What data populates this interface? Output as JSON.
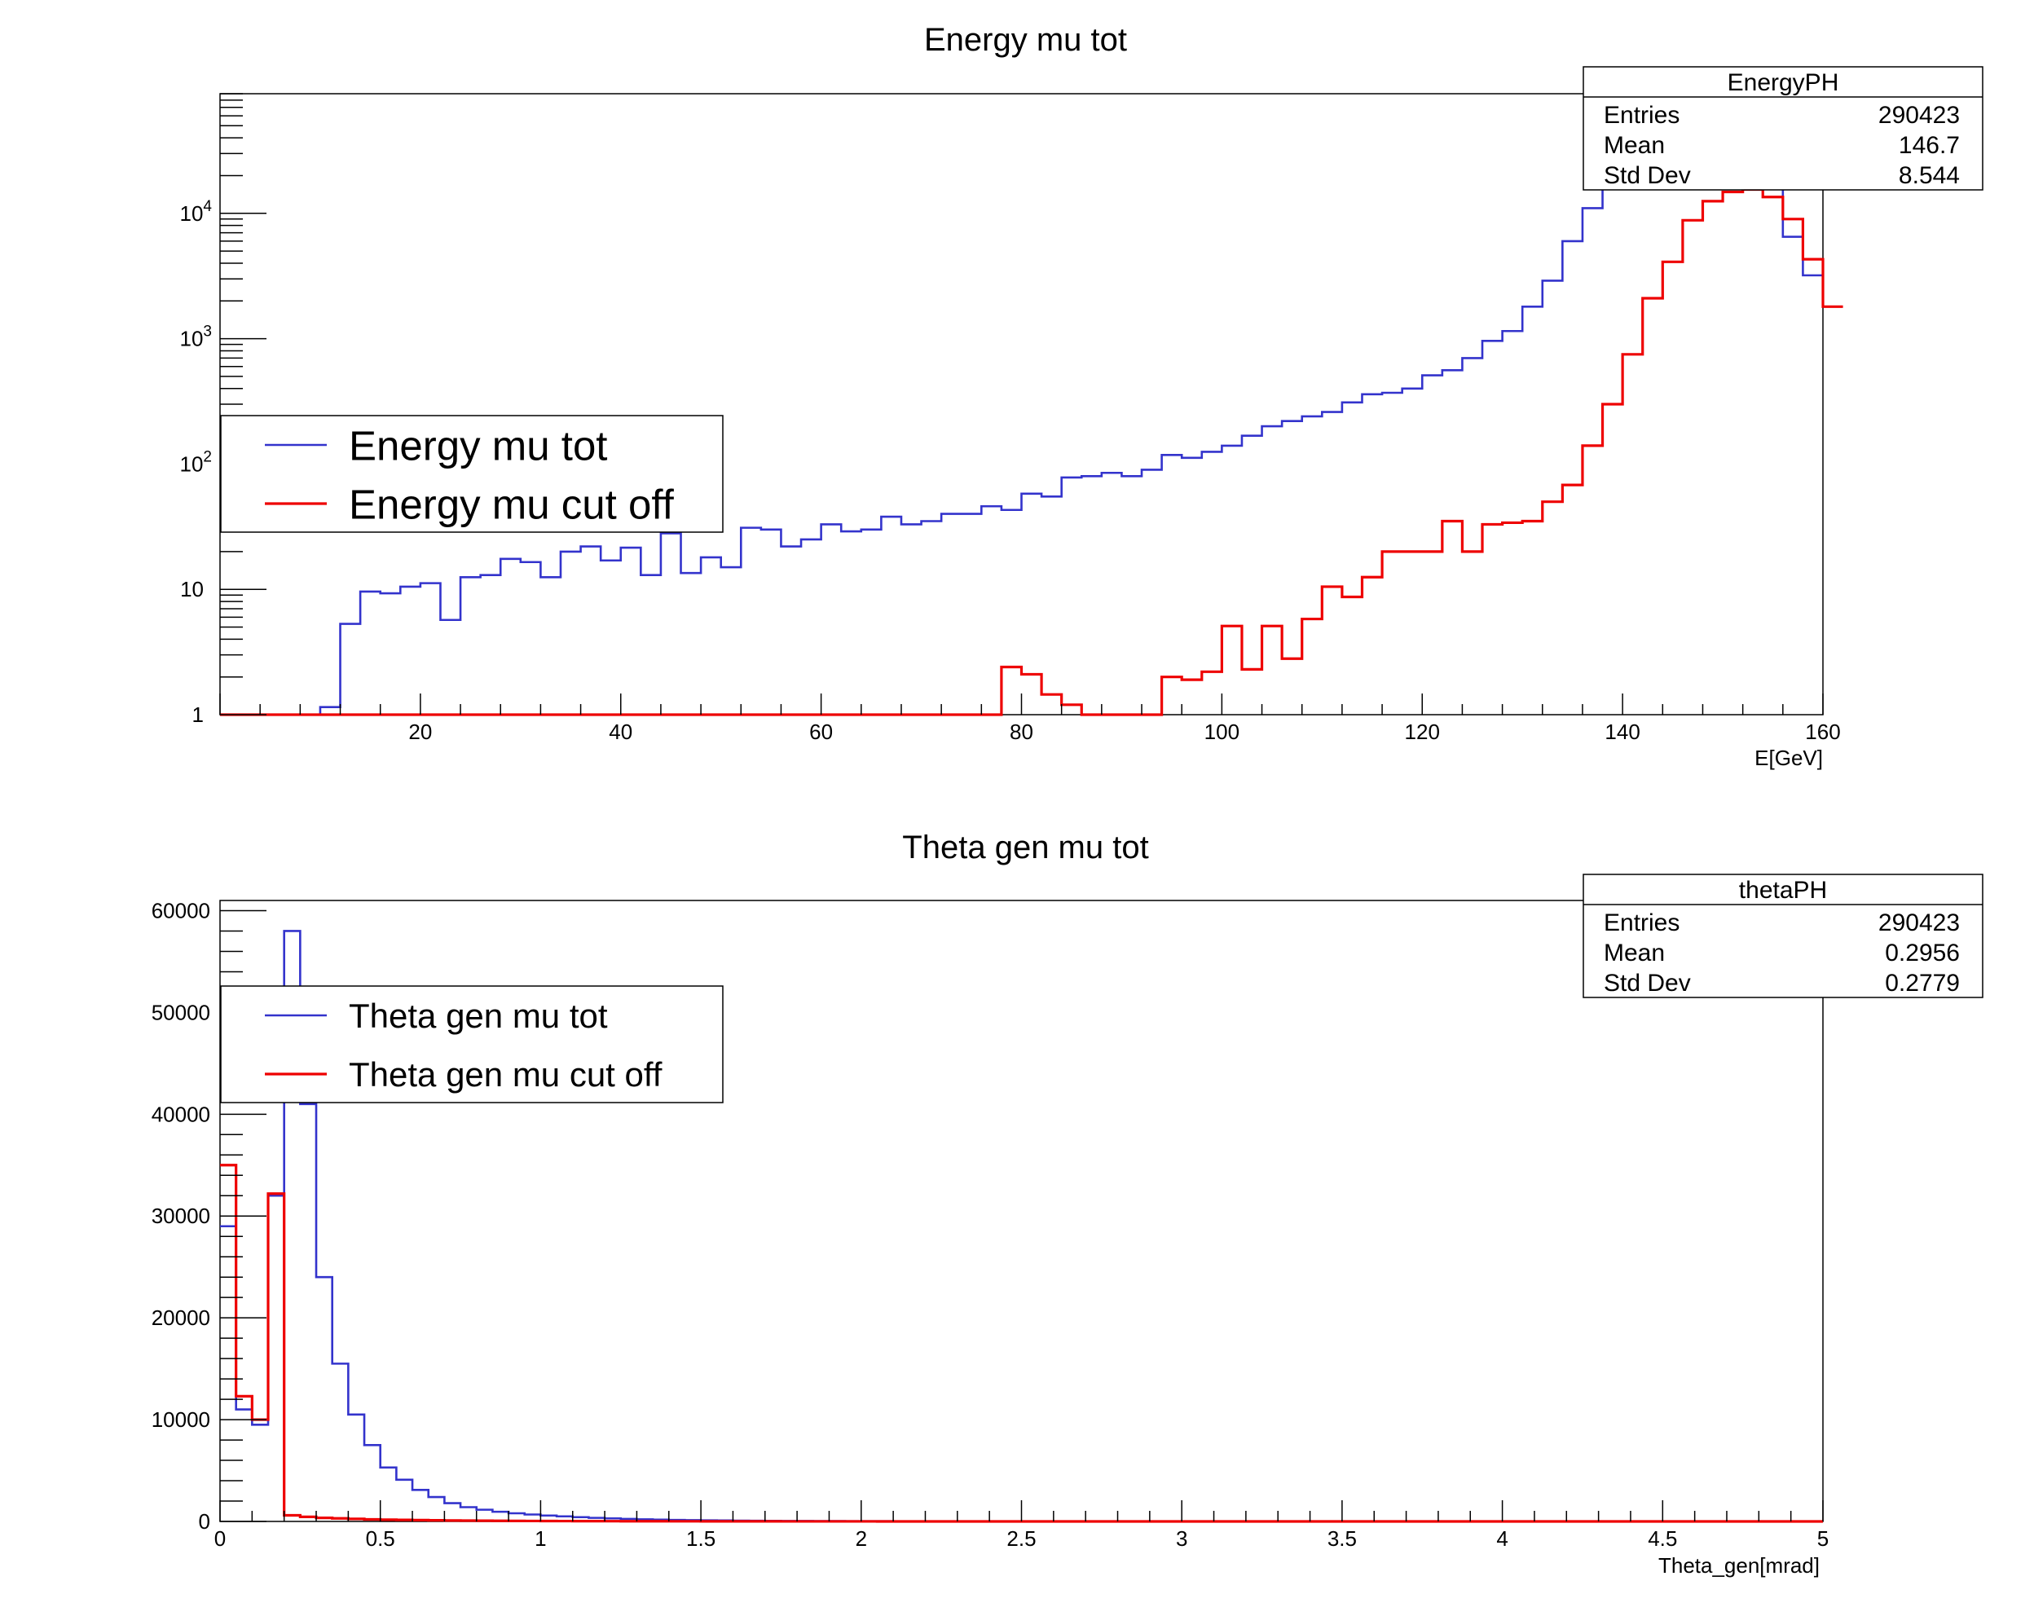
{
  "colors": {
    "blue": "#3333cc",
    "red": "#ee0000",
    "frame": "#000000",
    "background": "#ffffff"
  },
  "chart_data": [
    {
      "type": "histogram",
      "title": "Energy mu tot",
      "xlabel": "E[GeV]",
      "ylabel": "",
      "xlim": [
        0,
        160
      ],
      "ylim": [
        1,
        90000
      ],
      "log_y": true,
      "grid": false,
      "x_ticks": [
        "20",
        "40",
        "60",
        "80",
        "100",
        "120",
        "140",
        "160"
      ],
      "y_ticks": [
        {
          "value": 1,
          "base": "1",
          "exp": ""
        },
        {
          "value": 10,
          "base": "10",
          "exp": ""
        },
        {
          "value": 100,
          "base": "10",
          "exp": "2"
        },
        {
          "value": 1000,
          "base": "10",
          "exp": "3"
        },
        {
          "value": 10000,
          "base": "10",
          "exp": "4"
        }
      ],
      "bin_width": 2,
      "stats": {
        "name": "EnergyPH",
        "rows": [
          {
            "label": "Entries",
            "value": "290423"
          },
          {
            "label": "Mean",
            "value": "146.7"
          },
          {
            "label": "Std Dev",
            "value": "8.544"
          }
        ]
      },
      "legend": {
        "position": "left-middle",
        "entries": [
          {
            "label": "Energy mu tot",
            "color": "#3333cc"
          },
          {
            "label": "Energy mu cut off",
            "color": "#ee0000"
          }
        ]
      },
      "series": [
        {
          "name": "Energy mu tot",
          "color": "#3333cc",
          "values": [
            1,
            1,
            1,
            1,
            1,
            1.15,
            5.3,
            9.6,
            9.3,
            10.5,
            11.2,
            5.7,
            12.5,
            13,
            17.5,
            16.5,
            12.5,
            20,
            22,
            17,
            21.5,
            13,
            28,
            13.5,
            18,
            15,
            31,
            30,
            22,
            25,
            33,
            29,
            30,
            38,
            33,
            35,
            40,
            40,
            46,
            43,
            58,
            55,
            78,
            80,
            85,
            80,
            90,
            118,
            112,
            125,
            140,
            168,
            200,
            220,
            240,
            260,
            310,
            360,
            370,
            400,
            510,
            560,
            700,
            960,
            1150,
            1800,
            2900,
            6000,
            11000,
            20000,
            27000,
            22000,
            29000,
            25000,
            24000,
            20000,
            28000,
            20000,
            6500,
            3200
          ]
        },
        {
          "name": "Energy mu cut off",
          "color": "#ee0000",
          "values": [
            1,
            1,
            1,
            1,
            1,
            1,
            1,
            1,
            1,
            1,
            1,
            1,
            1,
            1,
            1,
            1,
            1,
            1,
            1,
            1,
            1,
            1,
            1,
            1,
            1,
            1,
            1,
            1,
            1,
            1,
            1,
            1,
            1,
            1,
            1,
            1,
            1,
            1,
            1,
            2.4,
            2.1,
            1.45,
            1.2,
            1,
            1,
            1,
            1,
            2,
            1.9,
            2.2,
            5.1,
            2.3,
            5.1,
            2.8,
            5.8,
            10.5,
            8.7,
            12.5,
            20,
            20,
            20,
            35,
            20,
            33,
            34,
            35,
            50,
            68,
            140,
            300,
            750,
            2100,
            4100,
            8800,
            12500,
            14800,
            15500,
            13500,
            9000,
            4300,
            1800
          ]
        }
      ]
    },
    {
      "type": "histogram",
      "title": "Theta gen mu tot",
      "xlabel": "Theta_gen[mrad]",
      "ylabel": "",
      "xlim": [
        0,
        5
      ],
      "ylim": [
        0,
        61000
      ],
      "log_y": false,
      "grid": false,
      "x_ticks": [
        "0",
        "0.5",
        "1",
        "1.5",
        "2",
        "2.5",
        "3",
        "3.5",
        "4",
        "4.5",
        "5"
      ],
      "y_ticks": [
        "0",
        "10000",
        "20000",
        "30000",
        "40000",
        "50000",
        "60000"
      ],
      "bin_width": 0.05,
      "stats": {
        "name": "thetaPH",
        "rows": [
          {
            "label": "Entries",
            "value": "290423"
          },
          {
            "label": "Mean",
            "value": "0.2956"
          },
          {
            "label": "Std Dev",
            "value": "0.2779"
          }
        ]
      },
      "legend": {
        "position": "top-left",
        "entries": [
          {
            "label": "Theta gen mu tot",
            "color": "#3333cc"
          },
          {
            "label": "Theta gen mu cut off",
            "color": "#ee0000"
          }
        ]
      },
      "series": [
        {
          "name": "Theta gen mu tot",
          "color": "#3333cc",
          "values": [
            29000,
            11000,
            9500,
            32000,
            58000,
            41000,
            24000,
            15500,
            10500,
            7500,
            5300,
            4100,
            3100,
            2400,
            1800,
            1400,
            1150,
            950,
            800,
            680,
            580,
            500,
            420,
            350,
            300,
            250,
            210,
            180,
            150,
            130,
            110,
            95,
            80,
            70,
            60,
            50,
            45,
            40,
            35,
            30,
            25,
            22,
            20,
            18,
            16,
            14,
            12,
            11,
            10,
            9,
            8,
            7,
            6,
            6,
            5,
            5,
            4,
            4,
            3,
            3,
            3,
            2,
            2,
            2,
            2,
            2,
            2,
            1,
            1,
            1,
            1,
            1,
            1,
            1,
            1,
            1,
            1,
            1,
            1,
            1,
            1,
            1,
            1,
            1,
            1,
            1,
            1,
            1,
            1,
            1,
            1,
            1,
            1,
            1,
            1,
            1,
            1,
            1,
            1,
            1
          ]
        },
        {
          "name": "Theta gen mu cut off",
          "color": "#ee0000",
          "values": [
            35000,
            12300,
            10000,
            32200,
            600,
            450,
            350,
            300,
            250,
            200,
            170,
            150,
            130,
            110,
            90,
            80,
            70,
            60,
            50,
            45,
            40,
            35,
            30,
            28,
            25,
            22,
            20,
            18,
            16,
            14,
            12,
            11,
            10,
            9,
            8,
            7,
            6,
            5,
            5,
            4,
            4,
            3,
            3,
            2,
            2,
            2,
            2,
            1,
            1,
            1,
            1,
            1,
            1,
            1,
            1,
            1,
            1,
            1,
            1,
            1,
            1,
            1,
            1,
            1,
            1,
            1,
            1,
            1,
            1,
            1,
            1,
            1,
            1,
            1,
            1,
            1,
            1,
            1,
            1,
            1,
            1,
            1,
            1,
            1,
            1,
            1,
            1,
            1,
            1,
            1,
            1,
            1,
            1,
            1,
            1,
            1,
            1,
            1,
            1,
            1
          ]
        }
      ]
    }
  ]
}
